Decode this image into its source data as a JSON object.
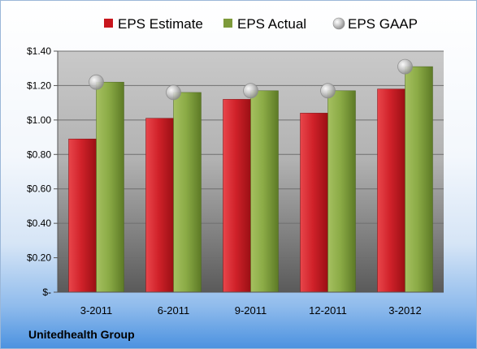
{
  "chart_data": {
    "type": "bar",
    "categories": [
      "3-2011",
      "6-2011",
      "9-2011",
      "12-2011",
      "3-2012"
    ],
    "series": [
      {
        "name": "EPS Estimate",
        "type": "bar",
        "color": "#c8161d",
        "values": [
          0.89,
          1.01,
          1.12,
          1.04,
          1.18
        ]
      },
      {
        "name": "EPS Actual",
        "type": "bar",
        "color": "#7d9a3a",
        "values": [
          1.22,
          1.16,
          1.17,
          1.17,
          1.31
        ]
      },
      {
        "name": "EPS GAAP",
        "type": "scatter",
        "color": "#b8b8b8",
        "values": [
          1.22,
          1.16,
          1.17,
          1.17,
          1.31
        ]
      }
    ],
    "ylim": [
      0,
      1.4
    ],
    "yticks": [
      0,
      0.2,
      0.4,
      0.6,
      0.8,
      1.0,
      1.2,
      1.4
    ],
    "ytick_labels": [
      "$-",
      "$0.20",
      "$0.40",
      "$0.60",
      "$0.80",
      "$1.00",
      "$1.20",
      "$1.40"
    ],
    "legend_position": "top",
    "grid": true,
    "annotation": "Unitedhealth Group"
  }
}
